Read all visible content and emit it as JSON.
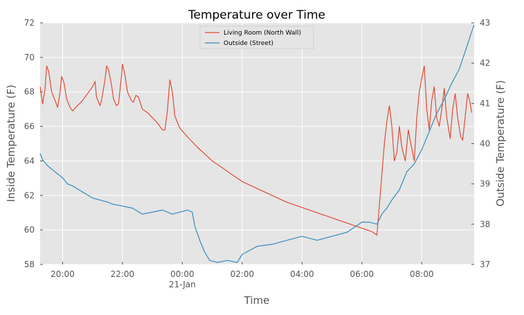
{
  "chart_data": {
    "type": "line",
    "title": "Temperature over Time",
    "xlabel": "Time",
    "ylabel_left": "Inside Temperature (F)",
    "ylabel_right": "Outside Temperature (F)",
    "ylim_left": [
      58,
      72
    ],
    "ylim_right": [
      37,
      43
    ],
    "yticks_left": [
      "58",
      "60",
      "62",
      "64",
      "66",
      "68",
      "70",
      "72"
    ],
    "yticks_right": [
      "37",
      "38",
      "39",
      "40",
      "41",
      "42",
      "43"
    ],
    "xlim": [
      "2017-01-20T19:15",
      "2017-01-21T09:45"
    ],
    "xticks": [
      {
        "t": "2017-01-20T20:00",
        "label": "20:00",
        "sublabel": ""
      },
      {
        "t": "2017-01-20T22:00",
        "label": "22:00",
        "sublabel": ""
      },
      {
        "t": "2017-01-21T00:00",
        "label": "00:00",
        "sublabel": "21-Jan"
      },
      {
        "t": "2017-01-21T02:00",
        "label": "02:00",
        "sublabel": ""
      },
      {
        "t": "2017-01-21T04:00",
        "label": "04:00",
        "sublabel": ""
      },
      {
        "t": "2017-01-21T06:00",
        "label": "06:00",
        "sublabel": ""
      },
      {
        "t": "2017-01-21T08:00",
        "label": "08:00",
        "sublabel": ""
      }
    ],
    "grid": true,
    "legend_position": "top-center",
    "series": [
      {
        "name": "Living Room (North Wall)",
        "axis": "left",
        "color": "#e24a33",
        "points": [
          [
            "2017-01-20T19:15",
            68.3
          ],
          [
            "2017-01-20T19:20",
            67.3
          ],
          [
            "2017-01-20T19:25",
            68.2
          ],
          [
            "2017-01-20T19:28",
            69.5
          ],
          [
            "2017-01-20T19:32",
            69.2
          ],
          [
            "2017-01-20T19:38",
            68.0
          ],
          [
            "2017-01-20T19:45",
            67.5
          ],
          [
            "2017-01-20T19:50",
            67.1
          ],
          [
            "2017-01-20T19:55",
            68.0
          ],
          [
            "2017-01-20T19:58",
            68.9
          ],
          [
            "2017-01-20T20:03",
            68.5
          ],
          [
            "2017-01-20T20:08",
            67.6
          ],
          [
            "2017-01-20T20:15",
            67.1
          ],
          [
            "2017-01-20T20:20",
            66.9
          ],
          [
            "2017-01-20T20:40",
            67.5
          ],
          [
            "2017-01-20T21:00",
            68.3
          ],
          [
            "2017-01-20T21:05",
            68.6
          ],
          [
            "2017-01-20T21:08",
            67.7
          ],
          [
            "2017-01-20T21:15",
            67.2
          ],
          [
            "2017-01-20T21:18",
            67.5
          ],
          [
            "2017-01-20T21:25",
            68.7
          ],
          [
            "2017-01-20T21:28",
            69.5
          ],
          [
            "2017-01-20T21:32",
            69.3
          ],
          [
            "2017-01-20T21:38",
            68.4
          ],
          [
            "2017-01-20T21:42",
            67.6
          ],
          [
            "2017-01-20T21:48",
            67.2
          ],
          [
            "2017-01-20T21:52",
            67.3
          ],
          [
            "2017-01-20T21:58",
            68.9
          ],
          [
            "2017-01-20T22:00",
            69.6
          ],
          [
            "2017-01-20T22:05",
            69.0
          ],
          [
            "2017-01-20T22:10",
            68.0
          ],
          [
            "2017-01-20T22:18",
            67.5
          ],
          [
            "2017-01-20T22:22",
            67.4
          ],
          [
            "2017-01-20T22:27",
            67.8
          ],
          [
            "2017-01-20T22:32",
            67.7
          ],
          [
            "2017-01-20T22:40",
            67.0
          ],
          [
            "2017-01-20T22:50",
            66.8
          ],
          [
            "2017-01-20T23:00",
            66.5
          ],
          [
            "2017-01-20T23:10",
            66.2
          ],
          [
            "2017-01-20T23:20",
            65.8
          ],
          [
            "2017-01-20T23:25",
            65.8
          ],
          [
            "2017-01-20T23:30",
            66.9
          ],
          [
            "2017-01-20T23:35",
            68.7
          ],
          [
            "2017-01-20T23:40",
            68.0
          ],
          [
            "2017-01-20T23:45",
            66.6
          ],
          [
            "2017-01-20T23:55",
            65.9
          ],
          [
            "2017-01-21T00:10",
            65.4
          ],
          [
            "2017-01-21T00:30",
            64.8
          ],
          [
            "2017-01-21T01:00",
            64.0
          ],
          [
            "2017-01-21T01:30",
            63.4
          ],
          [
            "2017-01-21T02:00",
            62.8
          ],
          [
            "2017-01-21T02:30",
            62.4
          ],
          [
            "2017-01-21T03:00",
            62.0
          ],
          [
            "2017-01-21T03:30",
            61.6
          ],
          [
            "2017-01-21T04:00",
            61.3
          ],
          [
            "2017-01-21T04:30",
            61.0
          ],
          [
            "2017-01-21T05:00",
            60.7
          ],
          [
            "2017-01-21T05:30",
            60.4
          ],
          [
            "2017-01-21T06:00",
            60.1
          ],
          [
            "2017-01-21T06:20",
            59.9
          ],
          [
            "2017-01-21T06:30",
            59.7
          ],
          [
            "2017-01-21T06:38",
            62.5
          ],
          [
            "2017-01-21T06:45",
            65.0
          ],
          [
            "2017-01-21T06:50",
            66.3
          ],
          [
            "2017-01-21T06:55",
            67.2
          ],
          [
            "2017-01-21T07:00",
            66.0
          ],
          [
            "2017-01-21T07:05",
            64.0
          ],
          [
            "2017-01-21T07:10",
            64.5
          ],
          [
            "2017-01-21T07:15",
            66.0
          ],
          [
            "2017-01-21T07:20",
            64.8
          ],
          [
            "2017-01-21T07:27",
            64.0
          ],
          [
            "2017-01-21T07:33",
            65.8
          ],
          [
            "2017-01-21T07:38",
            65.0
          ],
          [
            "2017-01-21T07:45",
            64.0
          ],
          [
            "2017-01-21T07:50",
            66.5
          ],
          [
            "2017-01-21T07:55",
            68.0
          ],
          [
            "2017-01-21T08:00",
            68.8
          ],
          [
            "2017-01-21T08:05",
            69.5
          ],
          [
            "2017-01-21T08:10",
            67.0
          ],
          [
            "2017-01-21T08:15",
            65.8
          ],
          [
            "2017-01-21T08:20",
            67.5
          ],
          [
            "2017-01-21T08:25",
            68.3
          ],
          [
            "2017-01-21T08:30",
            66.5
          ],
          [
            "2017-01-21T08:35",
            66.0
          ],
          [
            "2017-01-21T08:40",
            67.0
          ],
          [
            "2017-01-21T08:45",
            68.2
          ],
          [
            "2017-01-21T08:50",
            66.5
          ],
          [
            "2017-01-21T08:57",
            65.3
          ],
          [
            "2017-01-21T09:02",
            67.0
          ],
          [
            "2017-01-21T09:07",
            67.9
          ],
          [
            "2017-01-21T09:12",
            66.5
          ],
          [
            "2017-01-21T09:18",
            65.4
          ],
          [
            "2017-01-21T09:22",
            65.2
          ],
          [
            "2017-01-21T09:28",
            66.8
          ],
          [
            "2017-01-21T09:32",
            67.9
          ],
          [
            "2017-01-21T09:36",
            67.5
          ],
          [
            "2017-01-21T09:40",
            66.8
          ]
        ]
      },
      {
        "name": "Outside (Street)",
        "axis": "right",
        "color": "#348abd",
        "points": [
          [
            "2017-01-20T19:15",
            39.75
          ],
          [
            "2017-01-20T19:20",
            39.6
          ],
          [
            "2017-01-20T19:30",
            39.45
          ],
          [
            "2017-01-20T19:40",
            39.35
          ],
          [
            "2017-01-20T19:50",
            39.25
          ],
          [
            "2017-01-20T20:00",
            39.15
          ],
          [
            "2017-01-20T20:10",
            39.0
          ],
          [
            "2017-01-20T20:20",
            38.95
          ],
          [
            "2017-01-20T20:40",
            38.8
          ],
          [
            "2017-01-20T21:00",
            38.65
          ],
          [
            "2017-01-20T21:15",
            38.6
          ],
          [
            "2017-01-20T21:30",
            38.55
          ],
          [
            "2017-01-20T21:40",
            38.5
          ],
          [
            "2017-01-20T22:00",
            38.45
          ],
          [
            "2017-01-20T22:20",
            38.4
          ],
          [
            "2017-01-20T22:40",
            38.25
          ],
          [
            "2017-01-20T23:00",
            38.3
          ],
          [
            "2017-01-20T23:20",
            38.35
          ],
          [
            "2017-01-20T23:40",
            38.25
          ],
          [
            "2017-01-20T23:55",
            38.3
          ],
          [
            "2017-01-21T00:10",
            38.35
          ],
          [
            "2017-01-21T00:20",
            38.3
          ],
          [
            "2017-01-21T00:25",
            37.95
          ],
          [
            "2017-01-21T00:35",
            37.6
          ],
          [
            "2017-01-21T00:45",
            37.3
          ],
          [
            "2017-01-21T00:55",
            37.1
          ],
          [
            "2017-01-21T01:10",
            37.05
          ],
          [
            "2017-01-21T01:30",
            37.1
          ],
          [
            "2017-01-21T01:50",
            37.05
          ],
          [
            "2017-01-21T02:00",
            37.25
          ],
          [
            "2017-01-21T02:15",
            37.35
          ],
          [
            "2017-01-21T02:30",
            37.45
          ],
          [
            "2017-01-21T03:00",
            37.5
          ],
          [
            "2017-01-21T03:30",
            37.6
          ],
          [
            "2017-01-21T04:00",
            37.7
          ],
          [
            "2017-01-21T04:30",
            37.6
          ],
          [
            "2017-01-21T05:00",
            37.7
          ],
          [
            "2017-01-21T05:30",
            37.8
          ],
          [
            "2017-01-21T06:00",
            38.05
          ],
          [
            "2017-01-21T06:15",
            38.05
          ],
          [
            "2017-01-21T06:30",
            38.0
          ],
          [
            "2017-01-21T06:40",
            38.25
          ],
          [
            "2017-01-21T06:50",
            38.4
          ],
          [
            "2017-01-21T07:00",
            38.6
          ],
          [
            "2017-01-21T07:15",
            38.85
          ],
          [
            "2017-01-21T07:30",
            39.3
          ],
          [
            "2017-01-21T07:45",
            39.5
          ],
          [
            "2017-01-21T08:00",
            39.85
          ],
          [
            "2017-01-21T08:15",
            40.3
          ],
          [
            "2017-01-21T08:30",
            40.75
          ],
          [
            "2017-01-21T08:45",
            41.1
          ],
          [
            "2017-01-21T09:00",
            41.5
          ],
          [
            "2017-01-21T09:15",
            41.85
          ],
          [
            "2017-01-21T09:30",
            42.4
          ],
          [
            "2017-01-21T09:42",
            42.85
          ],
          [
            "2017-01-21T09:45",
            42.95
          ]
        ]
      }
    ]
  }
}
